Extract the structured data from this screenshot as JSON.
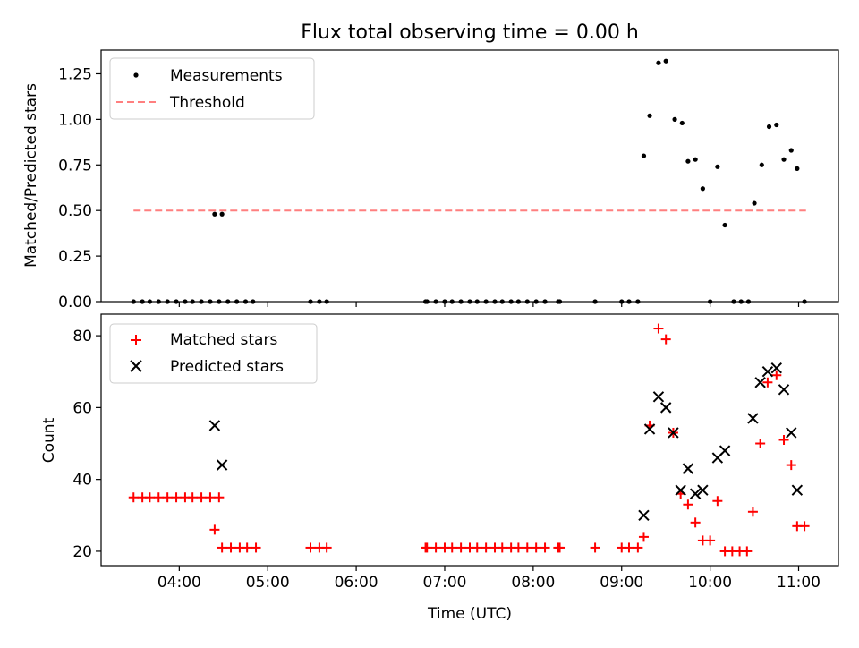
{
  "chart_data": [
    {
      "type": "scatter",
      "title": "Flux total observing time = 0.00 h",
      "xlabel": "",
      "ylabel": "Matched/Predicted stars",
      "xlim": [
        "03:07",
        "11:27"
      ],
      "ylim": [
        0,
        1.38
      ],
      "yticks": [
        0.0,
        0.25,
        0.5,
        0.75,
        1.0,
        1.25
      ],
      "ytick_labels": [
        "0.00",
        "0.25",
        "0.50",
        "0.75",
        "1.00",
        "1.25"
      ],
      "xticks": [
        "04:00",
        "05:00",
        "06:00",
        "07:00",
        "08:00",
        "09:00",
        "10:00",
        "11:00"
      ],
      "xtick_labels_shown": false,
      "legend_position": "top-left",
      "threshold": {
        "name": "Threshold",
        "y": 0.5,
        "x_range": [
          "03:29",
          "11:05"
        ],
        "color": "#ff7f7f",
        "style": "dashed"
      },
      "series": [
        {
          "name": "Measurements",
          "marker": "dot",
          "color": "#000000",
          "points": [
            [
              "03:29",
              0
            ],
            [
              "03:35",
              0
            ],
            [
              "03:40",
              0
            ],
            [
              "03:46",
              0
            ],
            [
              "03:52",
              0
            ],
            [
              "03:58",
              0
            ],
            [
              "04:04",
              0
            ],
            [
              "04:09",
              0
            ],
            [
              "04:15",
              0
            ],
            [
              "04:21",
              0
            ],
            [
              "04:27",
              0
            ],
            [
              "04:24",
              0.48
            ],
            [
              "04:29",
              0.48
            ],
            [
              "04:33",
              0
            ],
            [
              "04:39",
              0
            ],
            [
              "04:45",
              0
            ],
            [
              "04:50",
              0
            ],
            [
              "05:29",
              0
            ],
            [
              "05:35",
              0
            ],
            [
              "05:40",
              0
            ],
            [
              "06:47",
              0
            ],
            [
              "06:48",
              0
            ],
            [
              "06:54",
              0
            ],
            [
              "07:00",
              0
            ],
            [
              "07:05",
              0
            ],
            [
              "07:11",
              0
            ],
            [
              "07:17",
              0
            ],
            [
              "07:22",
              0
            ],
            [
              "07:28",
              0
            ],
            [
              "07:34",
              0
            ],
            [
              "07:39",
              0
            ],
            [
              "07:45",
              0
            ],
            [
              "07:50",
              0
            ],
            [
              "07:56",
              0
            ],
            [
              "08:02",
              0
            ],
            [
              "08:08",
              0
            ],
            [
              "08:17",
              0
            ],
            [
              "08:18",
              0
            ],
            [
              "08:42",
              0
            ],
            [
              "09:00",
              0
            ],
            [
              "09:05",
              0
            ],
            [
              "09:11",
              0
            ],
            [
              "09:15",
              0.8
            ],
            [
              "09:19",
              1.02
            ],
            [
              "09:25",
              1.31
            ],
            [
              "09:30",
              1.32
            ],
            [
              "09:36",
              1.0
            ],
            [
              "09:41",
              0.98
            ],
            [
              "09:45",
              0.77
            ],
            [
              "09:50",
              0.78
            ],
            [
              "09:55",
              0.62
            ],
            [
              "10:00",
              0
            ],
            [
              "10:05",
              0.74
            ],
            [
              "10:10",
              0.42
            ],
            [
              "10:16",
              0
            ],
            [
              "10:21",
              0
            ],
            [
              "10:26",
              0
            ],
            [
              "10:30",
              0.54
            ],
            [
              "10:35",
              0.75
            ],
            [
              "10:40",
              0.96
            ],
            [
              "10:45",
              0.97
            ],
            [
              "10:50",
              0.78
            ],
            [
              "10:55",
              0.83
            ],
            [
              "10:59",
              0.73
            ],
            [
              "11:04",
              0
            ]
          ]
        }
      ]
    },
    {
      "type": "scatter",
      "title": "",
      "xlabel": "Time (UTC)",
      "ylabel": "Count",
      "xlim": [
        "03:07",
        "11:27"
      ],
      "ylim": [
        16,
        86
      ],
      "yticks": [
        20,
        40,
        60,
        80
      ],
      "ytick_labels": [
        "20",
        "40",
        "60",
        "80"
      ],
      "xticks": [
        "04:00",
        "05:00",
        "06:00",
        "07:00",
        "08:00",
        "09:00",
        "10:00",
        "11:00"
      ],
      "xtick_labels": [
        "04:00",
        "05:00",
        "06:00",
        "07:00",
        "08:00",
        "09:00",
        "10:00",
        "11:00"
      ],
      "legend_position": "top-left",
      "series": [
        {
          "name": "Matched stars",
          "marker": "plus",
          "color": "#ff0000",
          "points": [
            [
              "03:29",
              35
            ],
            [
              "03:35",
              35
            ],
            [
              "03:40",
              35
            ],
            [
              "03:46",
              35
            ],
            [
              "03:52",
              35
            ],
            [
              "03:58",
              35
            ],
            [
              "04:04",
              35
            ],
            [
              "04:09",
              35
            ],
            [
              "04:15",
              35
            ],
            [
              "04:21",
              35
            ],
            [
              "04:27",
              35
            ],
            [
              "04:24",
              26
            ],
            [
              "04:29",
              21
            ],
            [
              "04:35",
              21
            ],
            [
              "04:41",
              21
            ],
            [
              "04:46",
              21
            ],
            [
              "04:52",
              21
            ],
            [
              "05:29",
              21
            ],
            [
              "05:35",
              21
            ],
            [
              "05:40",
              21
            ],
            [
              "06:47",
              21
            ],
            [
              "06:48",
              21
            ],
            [
              "06:54",
              21
            ],
            [
              "07:00",
              21
            ],
            [
              "07:05",
              21
            ],
            [
              "07:11",
              21
            ],
            [
              "07:17",
              21
            ],
            [
              "07:22",
              21
            ],
            [
              "07:28",
              21
            ],
            [
              "07:34",
              21
            ],
            [
              "07:39",
              21
            ],
            [
              "07:45",
              21
            ],
            [
              "07:50",
              21
            ],
            [
              "07:56",
              21
            ],
            [
              "08:02",
              21
            ],
            [
              "08:08",
              21
            ],
            [
              "08:17",
              21
            ],
            [
              "08:18",
              21
            ],
            [
              "08:42",
              21
            ],
            [
              "09:00",
              21
            ],
            [
              "09:05",
              21
            ],
            [
              "09:11",
              21
            ],
            [
              "09:15",
              24
            ],
            [
              "09:19",
              55
            ],
            [
              "09:25",
              82
            ],
            [
              "09:30",
              79
            ],
            [
              "09:35",
              53
            ],
            [
              "09:40",
              36
            ],
            [
              "09:45",
              33
            ],
            [
              "09:50",
              28
            ],
            [
              "09:55",
              23
            ],
            [
              "10:00",
              23
            ],
            [
              "10:05",
              34
            ],
            [
              "10:10",
              20
            ],
            [
              "10:15",
              20
            ],
            [
              "10:20",
              20
            ],
            [
              "10:25",
              20
            ],
            [
              "10:29",
              31
            ],
            [
              "10:34",
              50
            ],
            [
              "10:39",
              67
            ],
            [
              "10:45",
              69
            ],
            [
              "10:50",
              51
            ],
            [
              "10:55",
              44
            ],
            [
              "10:59",
              27
            ],
            [
              "11:04",
              27
            ]
          ]
        },
        {
          "name": "Predicted stars",
          "marker": "x",
          "color": "#000000",
          "points": [
            [
              "04:24",
              55
            ],
            [
              "04:29",
              44
            ],
            [
              "09:15",
              30
            ],
            [
              "09:19",
              54
            ],
            [
              "09:25",
              63
            ],
            [
              "09:30",
              60
            ],
            [
              "09:35",
              53
            ],
            [
              "09:40",
              37
            ],
            [
              "09:45",
              43
            ],
            [
              "09:50",
              36
            ],
            [
              "09:55",
              37
            ],
            [
              "10:05",
              46
            ],
            [
              "10:10",
              48
            ],
            [
              "10:29",
              57
            ],
            [
              "10:34",
              67
            ],
            [
              "10:39",
              70
            ],
            [
              "10:45",
              71
            ],
            [
              "10:50",
              65
            ],
            [
              "10:55",
              53
            ],
            [
              "10:59",
              37
            ]
          ]
        }
      ]
    }
  ]
}
